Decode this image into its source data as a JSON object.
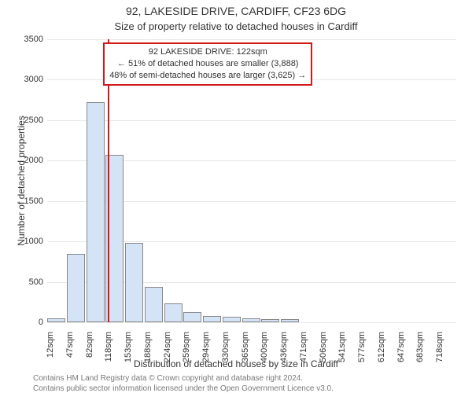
{
  "header": {
    "title": "92, LAKESIDE DRIVE, CARDIFF, CF23 6DG",
    "subtitle": "Size of property relative to detached houses in Cardiff"
  },
  "chart": {
    "type": "histogram",
    "ylabel": "Number of detached properties",
    "xlabel": "Distribution of detached houses by size in Cardiff",
    "ylim_max": 3500,
    "ytick_step": 500,
    "yticks": [
      0,
      500,
      1000,
      1500,
      2000,
      2500,
      3000,
      3500
    ],
    "grid_color": "#e7e7e7",
    "axis_color": "#888888",
    "background_color": "#ffffff",
    "bar_color": "#d5e3f7",
    "bar_border_color": "#888888",
    "bar_area_width_ratio": 0.93,
    "xtick_fontsize": 11,
    "ytick_fontsize": 11,
    "label_fontsize": 12,
    "marker": {
      "value_sqm": 122,
      "color": "#d11919",
      "line_width": 2
    },
    "annotation": {
      "border_color": "#d11919",
      "background_color": "#ffffff",
      "fontsize": 11,
      "line1": "92 LAKESIDE DRIVE: 122sqm",
      "line2": "← 51% of detached houses are smaller (3,888)",
      "line3": "48% of semi-detached houses are larger (3,625) →"
    },
    "bins": [
      {
        "label": "12sqm",
        "start": 12,
        "value": 50
      },
      {
        "label": "47sqm",
        "start": 47,
        "value": 850
      },
      {
        "label": "82sqm",
        "start": 82,
        "value": 2720
      },
      {
        "label": "118sqm",
        "start": 118,
        "value": 2070
      },
      {
        "label": "153sqm",
        "start": 153,
        "value": 980
      },
      {
        "label": "188sqm",
        "start": 188,
        "value": 440
      },
      {
        "label": "224sqm",
        "start": 224,
        "value": 230
      },
      {
        "label": "259sqm",
        "start": 259,
        "value": 130
      },
      {
        "label": "294sqm",
        "start": 294,
        "value": 80
      },
      {
        "label": "330sqm",
        "start": 330,
        "value": 70
      },
      {
        "label": "365sqm",
        "start": 365,
        "value": 50
      },
      {
        "label": "400sqm",
        "start": 400,
        "value": 40
      },
      {
        "label": "436sqm",
        "start": 436,
        "value": 40
      },
      {
        "label": "471sqm",
        "start": 471,
        "value": 0
      },
      {
        "label": "506sqm",
        "start": 506,
        "value": 0
      },
      {
        "label": "541sqm",
        "start": 541,
        "value": 0
      },
      {
        "label": "577sqm",
        "start": 577,
        "value": 0
      },
      {
        "label": "612sqm",
        "start": 612,
        "value": 0
      },
      {
        "label": "647sqm",
        "start": 647,
        "value": 0
      },
      {
        "label": "683sqm",
        "start": 683,
        "value": 0
      },
      {
        "label": "718sqm",
        "start": 718,
        "value": 0
      }
    ],
    "x_extent_end": 753
  },
  "footer": {
    "line1": "Contains HM Land Registry data © Crown copyright and database right 2024.",
    "line2": "Contains public sector information licensed under the Open Government Licence v3.0."
  }
}
